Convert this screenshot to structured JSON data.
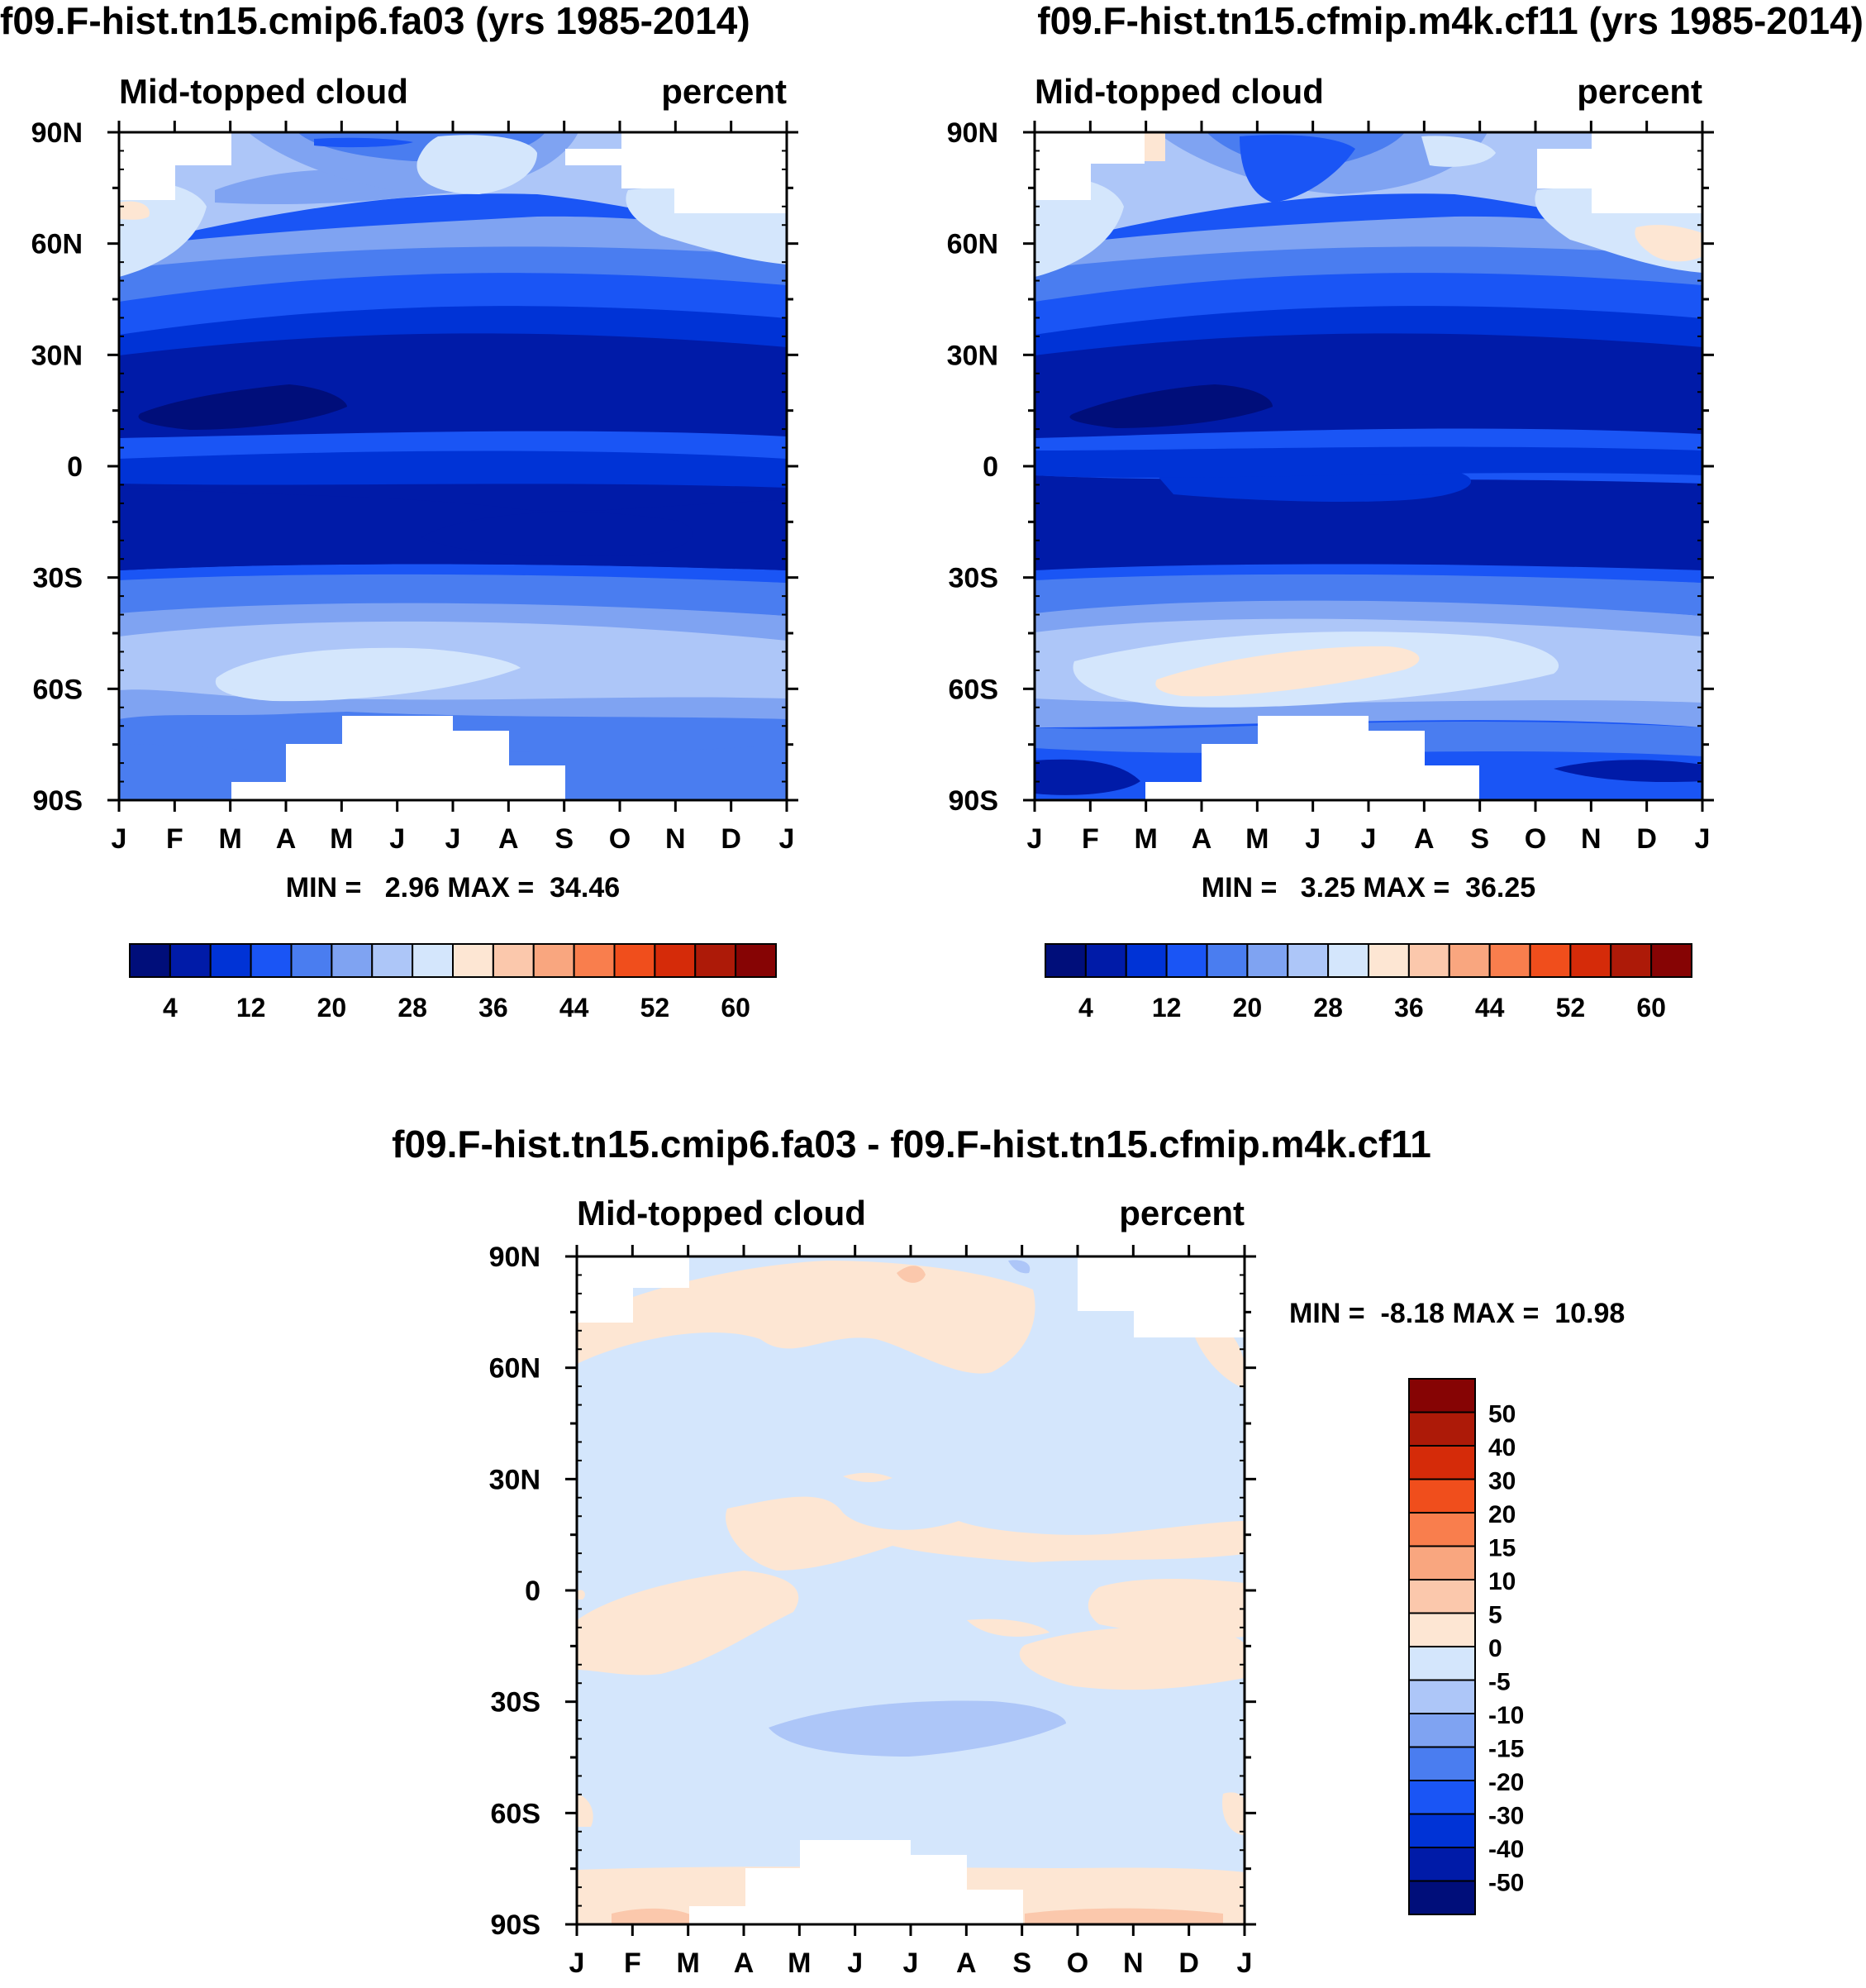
{
  "month_ticks": [
    "J",
    "F",
    "M",
    "A",
    "M",
    "J",
    "J",
    "A",
    "S",
    "O",
    "N",
    "D",
    "J"
  ],
  "lat_ticks": [
    "90N",
    "60N",
    "30N",
    "0",
    "30S",
    "60S",
    "90S"
  ],
  "colors": {
    "seq": [
      "#000e7a",
      "#001ba8",
      "#0033d6",
      "#1a55f5",
      "#4a7df0",
      "#7fa3f2",
      "#adc6f8",
      "#d4e6fc",
      "#fde6d3",
      "#fbc8ac",
      "#f9a67f",
      "#f97e4d",
      "#f04e1c",
      "#d52b09",
      "#ad1a08",
      "#860404"
    ],
    "diff": [
      "#000e7a",
      "#001ba8",
      "#0033d6",
      "#1a55f5",
      "#4a7df0",
      "#7fa3f2",
      "#adc6f8",
      "#d4e6fc",
      "#fde6d3",
      "#fbc8ac",
      "#f9a67f",
      "#f97e4d",
      "#f04e1c",
      "#d52b09",
      "#ad1a08",
      "#860404"
    ]
  },
  "panels": {
    "left": {
      "title": "f09.F-hist.tn15.cmip6.fa03 (yrs 1985-2014)",
      "subtitle_left": "Mid-topped cloud",
      "subtitle_right": "percent",
      "stats": "MIN =   2.96 MAX =  34.46"
    },
    "right": {
      "title": "f09.F-hist.tn15.cfmip.m4k.cf11 (yrs 1985-2014)",
      "subtitle_left": "Mid-topped cloud",
      "subtitle_right": "percent",
      "stats": "MIN =   3.25 MAX =  36.25"
    },
    "diff": {
      "title": "f09.F-hist.tn15.cmip6.fa03 - f09.F-hist.tn15.cfmip.m4k.cf11",
      "subtitle_left": "Mid-topped cloud",
      "subtitle_right": "percent",
      "stats": "MIN =  -8.18 MAX =  10.98"
    }
  },
  "chart_data": [
    {
      "type": "heatmap",
      "title": "f09.F-hist.tn15.cmip6.fa03 (yrs 1985-2014)",
      "variable": "Mid-topped cloud",
      "units": "percent",
      "x_categories": [
        "J",
        "F",
        "M",
        "A",
        "M",
        "J",
        "J",
        "A",
        "S",
        "O",
        "N",
        "D",
        "J"
      ],
      "y_range": [
        -90,
        90
      ],
      "y_ticks": [
        "90N",
        "60N",
        "30N",
        "0",
        "30S",
        "60S",
        "90S"
      ],
      "min": 2.96,
      "max": 34.46,
      "colorbar_labels": [
        "4",
        "12",
        "20",
        "28",
        "36",
        "44",
        "52",
        "60"
      ],
      "zonal_profile": [
        {
          "lat": -85,
          "value": 18
        },
        {
          "lat": -75,
          "value": 20
        },
        {
          "lat": -65,
          "value": 22
        },
        {
          "lat": -55,
          "value": 29
        },
        {
          "lat": -45,
          "value": 21
        },
        {
          "lat": -35,
          "value": 13
        },
        {
          "lat": -25,
          "value": 7
        },
        {
          "lat": -15,
          "value": 7
        },
        {
          "lat": -5,
          "value": 14
        },
        {
          "lat": 5,
          "value": 13
        },
        {
          "lat": 15,
          "value": 6
        },
        {
          "lat": 25,
          "value": 8
        },
        {
          "lat": 35,
          "value": 10
        },
        {
          "lat": 45,
          "value": 18
        },
        {
          "lat": 55,
          "value": 26
        },
        {
          "lat": 65,
          "value": 27
        },
        {
          "lat": 75,
          "value": 24
        },
        {
          "lat": 85,
          "value": 20
        }
      ]
    },
    {
      "type": "heatmap",
      "title": "f09.F-hist.tn15.cfmip.m4k.cf11 (yrs 1985-2014)",
      "variable": "Mid-topped cloud",
      "units": "percent",
      "x_categories": [
        "J",
        "F",
        "M",
        "A",
        "M",
        "J",
        "J",
        "A",
        "S",
        "O",
        "N",
        "D",
        "J"
      ],
      "y_range": [
        -90,
        90
      ],
      "y_ticks": [
        "90N",
        "60N",
        "30N",
        "0",
        "30S",
        "60S",
        "90S"
      ],
      "min": 3.25,
      "max": 36.25,
      "colorbar_labels": [
        "4",
        "12",
        "20",
        "28",
        "36",
        "44",
        "52",
        "60"
      ],
      "zonal_profile": [
        {
          "lat": -85,
          "value": 14
        },
        {
          "lat": -75,
          "value": 19
        },
        {
          "lat": -65,
          "value": 23
        },
        {
          "lat": -55,
          "value": 33
        },
        {
          "lat": -45,
          "value": 23
        },
        {
          "lat": -35,
          "value": 12
        },
        {
          "lat": -25,
          "value": 7
        },
        {
          "lat": -15,
          "value": 7
        },
        {
          "lat": -5,
          "value": 11
        },
        {
          "lat": 5,
          "value": 12
        },
        {
          "lat": 15,
          "value": 6
        },
        {
          "lat": 25,
          "value": 8
        },
        {
          "lat": 35,
          "value": 10
        },
        {
          "lat": 45,
          "value": 18
        },
        {
          "lat": 55,
          "value": 26
        },
        {
          "lat": 65,
          "value": 27
        },
        {
          "lat": 75,
          "value": 23
        },
        {
          "lat": 85,
          "value": 17
        }
      ]
    },
    {
      "type": "heatmap",
      "title": "f09.F-hist.tn15.cmip6.fa03 - f09.F-hist.tn15.cfmip.m4k.cf11",
      "variable": "Mid-topped cloud",
      "units": "percent",
      "x_categories": [
        "J",
        "F",
        "M",
        "A",
        "M",
        "J",
        "J",
        "A",
        "S",
        "O",
        "N",
        "D",
        "J"
      ],
      "y_range": [
        -90,
        90
      ],
      "y_ticks": [
        "90N",
        "60N",
        "30N",
        "0",
        "30S",
        "60S",
        "90S"
      ],
      "min": -8.18,
      "max": 10.98,
      "colorbar_labels": [
        "50",
        "40",
        "30",
        "20",
        "15",
        "10",
        "5",
        "0",
        "-5",
        "-10",
        "-15",
        "-20",
        "-30",
        "-40",
        "-50"
      ],
      "zonal_profile": [
        {
          "lat": -85,
          "value": 2
        },
        {
          "lat": -75,
          "value": -2
        },
        {
          "lat": -60,
          "value": -3
        },
        {
          "lat": -45,
          "value": -3
        },
        {
          "lat": -38,
          "value": -6
        },
        {
          "lat": -25,
          "value": -2
        },
        {
          "lat": -10,
          "value": 2
        },
        {
          "lat": 0,
          "value": -1
        },
        {
          "lat": 15,
          "value": 2
        },
        {
          "lat": 30,
          "value": -2
        },
        {
          "lat": 50,
          "value": -2
        },
        {
          "lat": 70,
          "value": 2
        },
        {
          "lat": 85,
          "value": 2
        }
      ]
    }
  ]
}
